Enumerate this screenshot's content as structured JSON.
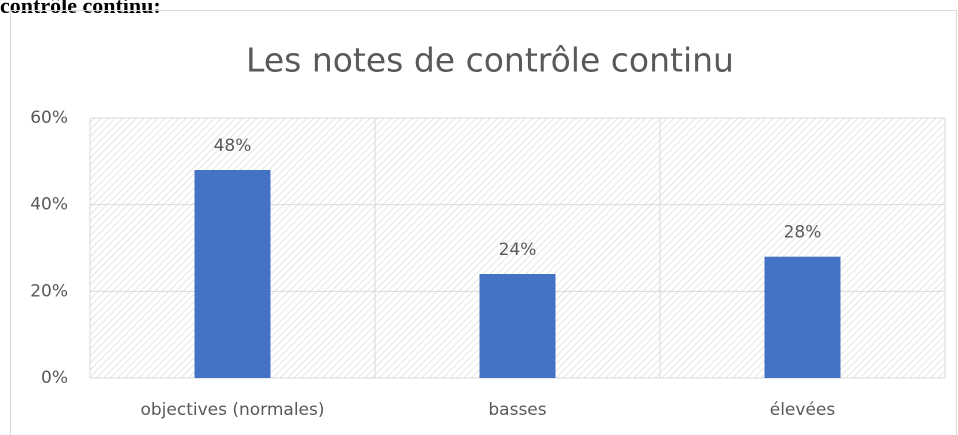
{
  "caption": "contrôle continu:",
  "chart_data": {
    "type": "bar",
    "title": "Les notes de contrôle continu",
    "categories": [
      "objectives (normales)",
      "basses",
      "élevées"
    ],
    "values": [
      48,
      24,
      28
    ],
    "value_labels": [
      "48%",
      "24%",
      "28%"
    ],
    "color": "#4472c4",
    "ylim": [
      0,
      60
    ],
    "yticks": [
      {
        "value": 0,
        "label": "0%"
      },
      {
        "value": 20,
        "label": "20%"
      },
      {
        "value": 40,
        "label": "40%"
      },
      {
        "value": 60,
        "label": "60%"
      }
    ],
    "grid": true
  }
}
